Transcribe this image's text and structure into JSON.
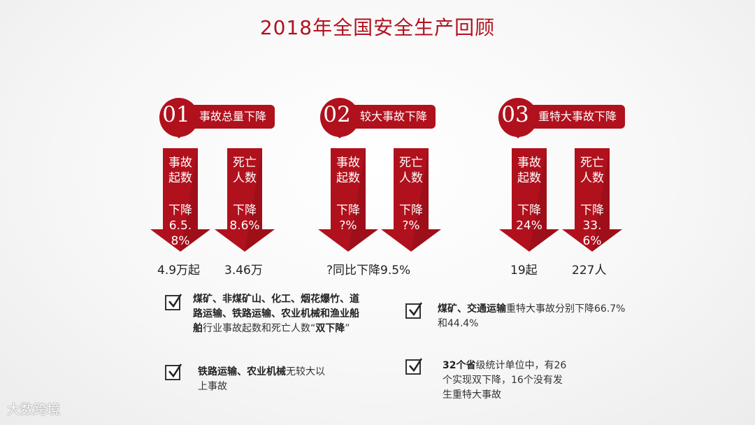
{
  "title": "2018年全国安全生产回顾",
  "colors": {
    "primary": "#b0111d",
    "accent_dark": "#7f0c14"
  },
  "groups": [
    {
      "num": "01",
      "label": "事故总量下降",
      "arrows": [
        {
          "head": "事故起数",
          "sub": "下降",
          "pct": "6.5.8%"
        },
        {
          "head": "死亡人数",
          "sub": "下降",
          "pct": "8.6%"
        }
      ],
      "results": [
        "4.9万起",
        "3.46万"
      ]
    },
    {
      "num": "02",
      "label": "较大事故下降",
      "arrows": [
        {
          "head": "事故起数",
          "sub": "下降",
          "pct": "?%"
        },
        {
          "head": "死亡人数",
          "sub": "下降",
          "pct": "?%"
        }
      ],
      "results": [
        "?同比下降9.5%"
      ]
    },
    {
      "num": "03",
      "label": "重特大事故下降",
      "arrows": [
        {
          "head": "事故起数",
          "sub": "下降",
          "pct": "24%"
        },
        {
          "head": "死亡人数",
          "sub": "下降",
          "pct": "33.6%"
        }
      ],
      "results": [
        "19起",
        "227人"
      ]
    }
  ],
  "notes": {
    "n1_bold": "煤矿、非煤矿山、化工、烟花爆竹、道路运输、铁路运输、农业机械和渔业船舶",
    "n1_rest": "行业事故起数和死亡人数“",
    "n1_bold2": "双下降",
    "n1_end": "”",
    "n2_bold": "铁路运输、农业机械",
    "n2_rest": "无较大以上事故",
    "n3_bold": "煤矿、交通运输",
    "n3_rest": "重特大事故分别下降66.7%和44.4%",
    "n4_bold": "32个省",
    "n4_rest": "级统计单位中，有26个实现双下降，16个没有发生重特大事故"
  },
  "watermark": "大数跨境",
  "icons": {
    "check": "checkbox-check-icon",
    "pin": "location-pin-icon",
    "arrow": "down-arrow-icon"
  }
}
